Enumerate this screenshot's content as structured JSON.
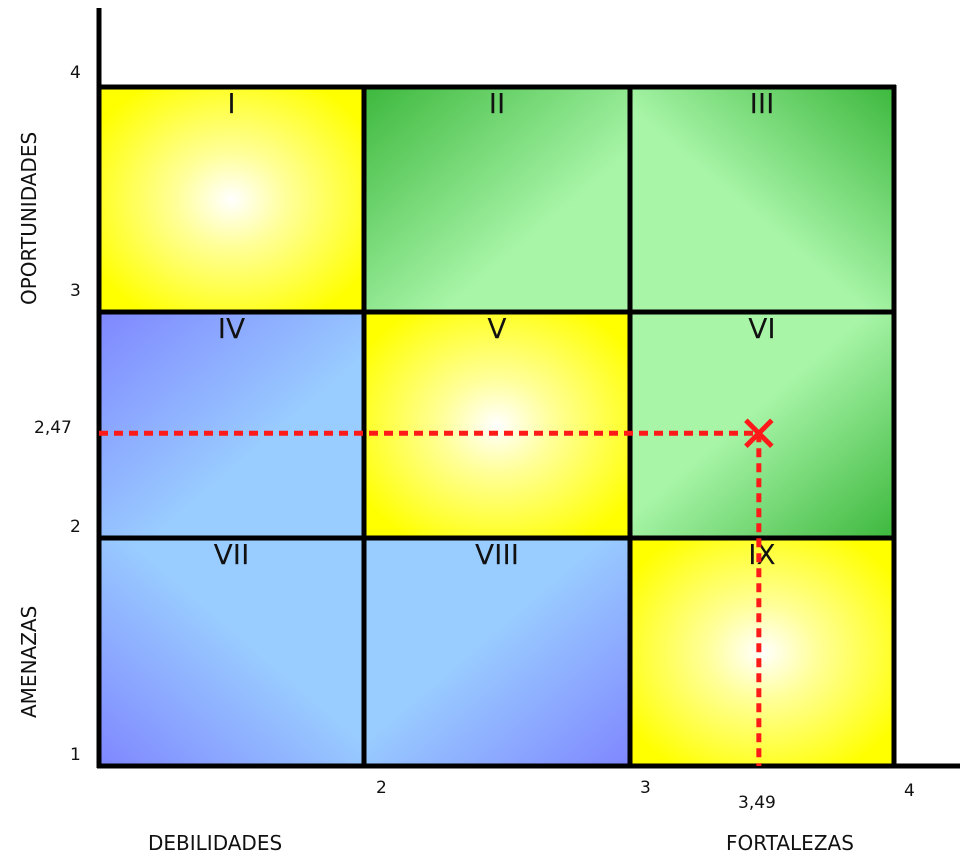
{
  "chart_data": {
    "type": "matrix",
    "x_axis": {
      "range": [
        1,
        4
      ],
      "ticks": [
        "2",
        "3",
        "4"
      ],
      "label_low": "DEBILIDADES",
      "label_high": "FORTALEZAS"
    },
    "y_axis": {
      "range": [
        1,
        4
      ],
      "ticks": [
        "1",
        "2",
        "3",
        "4"
      ],
      "label_high": "OPORTUNIDADES",
      "label_low": "AMENAZAS"
    },
    "cells": [
      {
        "label": "I",
        "color": "yellow"
      },
      {
        "label": "II",
        "color": "green"
      },
      {
        "label": "III",
        "color": "green"
      },
      {
        "label": "IV",
        "color": "blue"
      },
      {
        "label": "V",
        "color": "yellow"
      },
      {
        "label": "VI",
        "color": "green"
      },
      {
        "label": "VII",
        "color": "blue"
      },
      {
        "label": "VIII",
        "color": "blue"
      },
      {
        "label": "IX",
        "color": "yellow"
      }
    ],
    "point": {
      "x": 3.49,
      "y": 2.47,
      "x_label": "3,49",
      "y_label": "2,47",
      "marker_color": "#ff1a1a"
    },
    "colors": {
      "yellow": "#ffff00",
      "green": "#3db83d",
      "light_green": "#a8f5a8",
      "blue": "#7f87ff",
      "light_blue": "#99ccff",
      "grid": "#000000"
    }
  }
}
